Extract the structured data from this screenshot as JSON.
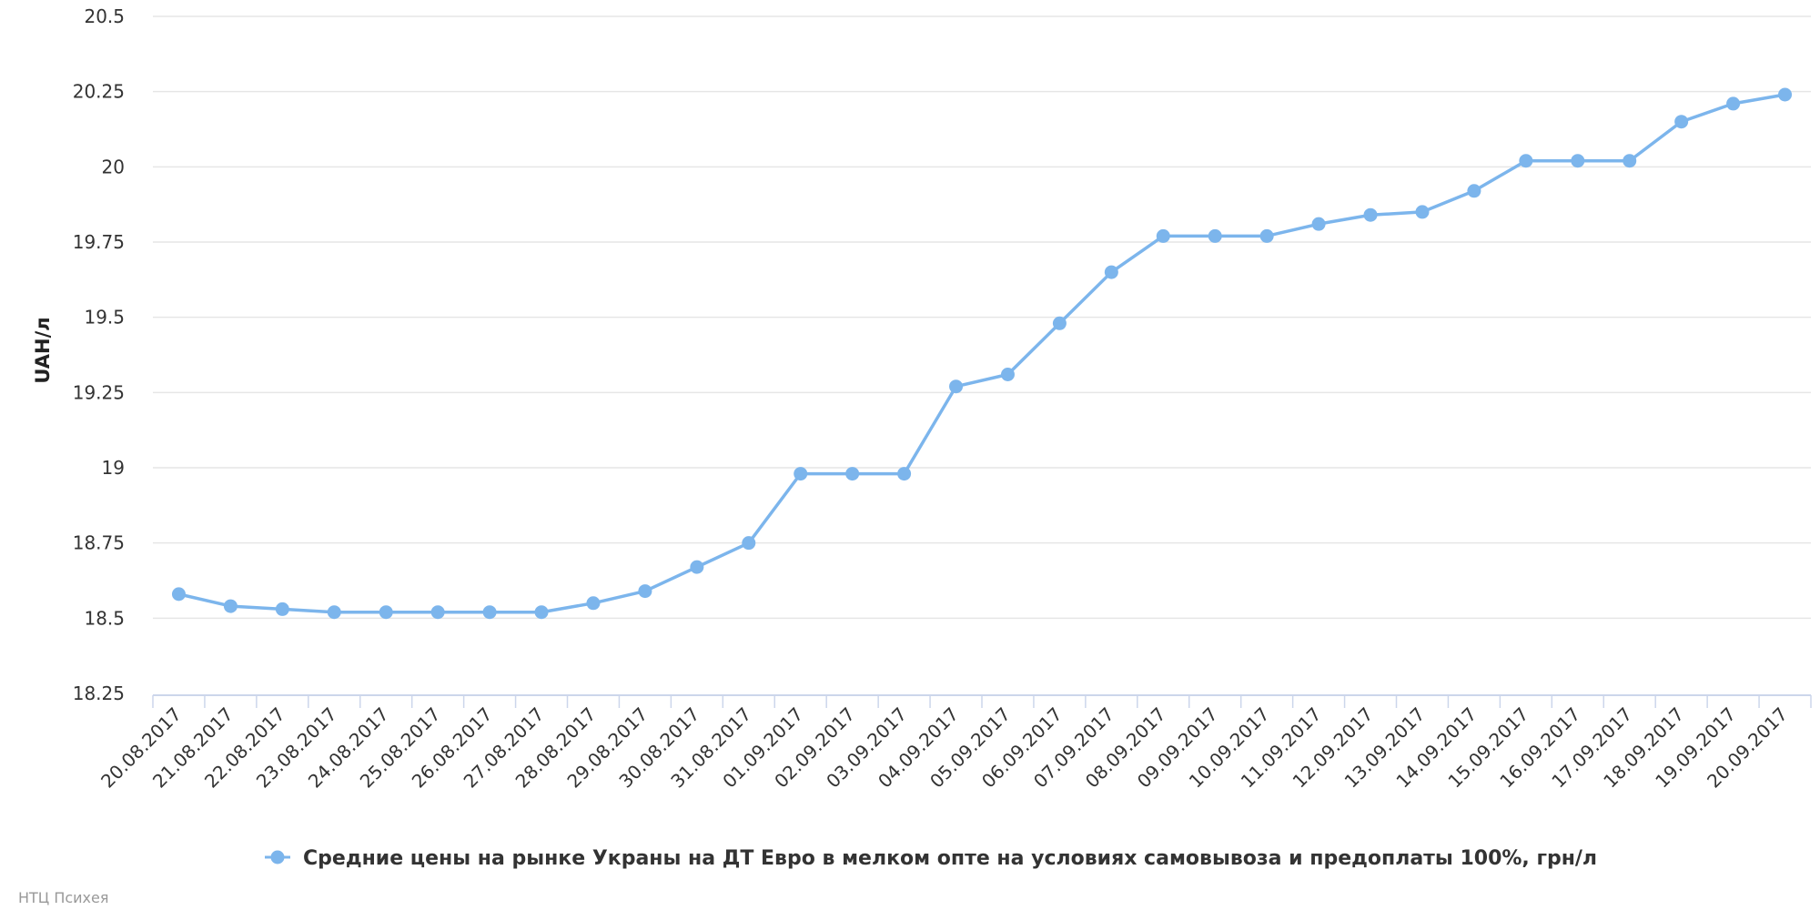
{
  "chart_data": {
    "type": "line",
    "title": "",
    "xlabel": "",
    "ylabel": "UAH/л",
    "ylim": [
      18.25,
      20.5
    ],
    "yticks": [
      "18.25",
      "18.5",
      "18.75",
      "19",
      "19.25",
      "19.5",
      "19.75",
      "20",
      "20.25",
      "20.5"
    ],
    "grid": true,
    "legend_position": "bottom",
    "line_color": "#7cb5ec",
    "categories": [
      "20.08.2017",
      "21.08.2017",
      "22.08.2017",
      "23.08.2017",
      "24.08.2017",
      "25.08.2017",
      "26.08.2017",
      "27.08.2017",
      "28.08.2017",
      "29.08.2017",
      "30.08.2017",
      "31.08.2017",
      "01.09.2017",
      "02.09.2017",
      "03.09.2017",
      "04.09.2017",
      "05.09.2017",
      "06.09.2017",
      "07.09.2017",
      "08.09.2017",
      "09.09.2017",
      "10.09.2017",
      "11.09.2017",
      "12.09.2017",
      "13.09.2017",
      "14.09.2017",
      "15.09.2017",
      "16.09.2017",
      "17.09.2017",
      "18.09.2017",
      "19.09.2017",
      "20.09.2017"
    ],
    "series": [
      {
        "name": "Средние цены на рынке Украны на ДТ Евро в мелком опте на условиях самовывоза и предоплаты 100%, грн/л",
        "values": [
          18.58,
          18.54,
          18.53,
          18.52,
          18.52,
          18.52,
          18.52,
          18.52,
          18.55,
          18.59,
          18.67,
          18.75,
          18.98,
          18.98,
          18.98,
          19.27,
          19.31,
          19.48,
          19.65,
          19.77,
          19.77,
          19.77,
          19.81,
          19.84,
          19.85,
          19.92,
          20.02,
          20.02,
          20.02,
          20.15,
          20.21,
          20.24
        ]
      }
    ]
  },
  "credit": "НТЦ Психея"
}
